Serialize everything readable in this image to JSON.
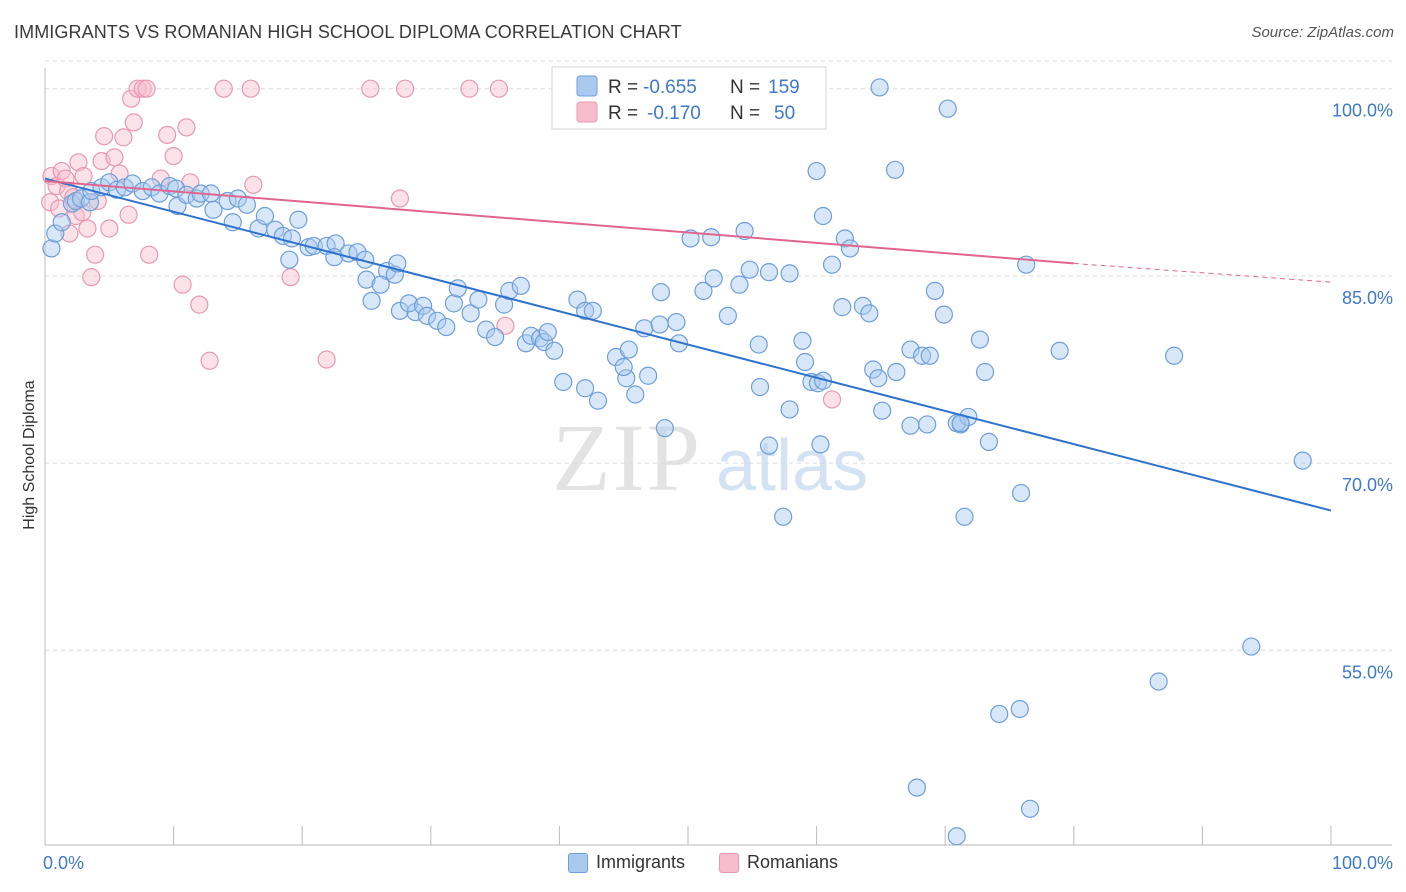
{
  "title": "IMMIGRANTS VS ROMANIAN HIGH SCHOOL DIPLOMA CORRELATION CHART",
  "source": "Source: ZipAtlas.com",
  "watermark": {
    "zip": "ZIP",
    "atlas": "atlas"
  },
  "colors": {
    "immigrants_fill": "#a9c9ef",
    "immigrants_stroke": "#6f9fd8",
    "immigrants_line": "#2f72cc",
    "romanians_fill": "#f6bccd",
    "romanians_stroke": "#e899b2",
    "romanians_line": "#e06690",
    "tick_label": "#3f79c9",
    "grid": "#dcdcdc"
  },
  "legend_top": {
    "immigrants": {
      "r_label": "R =",
      "r_value": "-0.655",
      "n_label": "N =",
      "n_value": "159"
    },
    "romanians": {
      "r_label": "R =",
      "r_value": "-0.170",
      "n_label": "N =",
      "n_value": "50"
    }
  },
  "chart_data": {
    "type": "scatter",
    "title": "IMMIGRANTS VS ROMANIAN HIGH SCHOOL DIPLOMA CORRELATION CHART",
    "xlabel": "",
    "ylabel": "High School Diploma",
    "xlim": [
      0,
      100
    ],
    "ylim": [
      39.4,
      102.3
    ],
    "x_tick_labels": [
      "0.0%",
      "100.0%"
    ],
    "y_ticks": [
      55,
      70,
      85,
      100
    ],
    "y_tick_labels": [
      "55.0%",
      "70.0%",
      "85.0%",
      "100.0%"
    ],
    "grid": true,
    "legend": [
      "Immigrants",
      "Romanians"
    ],
    "series": [
      {
        "name": "Immigrants",
        "r": -0.655,
        "n": 159,
        "trend": {
          "x": [
            0,
            100
          ],
          "y": [
            92.8,
            66.2
          ]
        },
        "points": [
          [
            0.5,
            87.2
          ],
          [
            0.8,
            88.4
          ],
          [
            1.3,
            89.3
          ],
          [
            2.1,
            90.8
          ],
          [
            2.4,
            91.0
          ],
          [
            2.8,
            91.2
          ],
          [
            3.5,
            90.9
          ],
          [
            3.6,
            91.8
          ],
          [
            4.4,
            92.1
          ],
          [
            5.0,
            92.5
          ],
          [
            5.6,
            91.9
          ],
          [
            6.2,
            92.1
          ],
          [
            6.8,
            92.4
          ],
          [
            7.6,
            91.8
          ],
          [
            8.3,
            92.1
          ],
          [
            8.9,
            91.6
          ],
          [
            9.7,
            92.2
          ],
          [
            10.2,
            92.0
          ],
          [
            10.3,
            90.6
          ],
          [
            11.0,
            91.5
          ],
          [
            11.8,
            91.2
          ],
          [
            12.1,
            91.6
          ],
          [
            12.9,
            91.6
          ],
          [
            13.1,
            90.3
          ],
          [
            14.2,
            91.0
          ],
          [
            15.0,
            91.2
          ],
          [
            15.7,
            90.7
          ],
          [
            14.6,
            89.3
          ],
          [
            16.6,
            88.8
          ],
          [
            17.1,
            89.8
          ],
          [
            17.9,
            88.7
          ],
          [
            18.5,
            88.2
          ],
          [
            19.7,
            89.5
          ],
          [
            19.2,
            88.0
          ],
          [
            20.5,
            87.3
          ],
          [
            20.9,
            87.4
          ],
          [
            21.9,
            87.4
          ],
          [
            22.6,
            87.6
          ],
          [
            22.5,
            86.5
          ],
          [
            23.6,
            86.8
          ],
          [
            24.3,
            86.9
          ],
          [
            24.9,
            86.3
          ],
          [
            19.0,
            86.3
          ],
          [
            26.6,
            85.4
          ],
          [
            27.2,
            85.1
          ],
          [
            27.4,
            86.0
          ],
          [
            25.0,
            84.7
          ],
          [
            26.1,
            84.3
          ],
          [
            25.4,
            83.0
          ],
          [
            27.6,
            82.2
          ],
          [
            28.8,
            82.1
          ],
          [
            28.3,
            82.8
          ],
          [
            29.4,
            82.6
          ],
          [
            29.7,
            81.8
          ],
          [
            30.5,
            81.4
          ],
          [
            31.2,
            80.9
          ],
          [
            31.8,
            82.8
          ],
          [
            32.1,
            84.0
          ],
          [
            33.1,
            82.0
          ],
          [
            33.7,
            83.1
          ],
          [
            34.3,
            80.7
          ],
          [
            35.0,
            80.1
          ],
          [
            35.7,
            82.7
          ],
          [
            36.1,
            83.8
          ],
          [
            37.0,
            84.2
          ],
          [
            37.4,
            79.6
          ],
          [
            37.8,
            80.2
          ],
          [
            38.5,
            80.0
          ],
          [
            38.8,
            79.7
          ],
          [
            39.1,
            80.5
          ],
          [
            39.6,
            79.0
          ],
          [
            41.4,
            83.1
          ],
          [
            40.3,
            76.5
          ],
          [
            42.0,
            82.2
          ],
          [
            42.6,
            82.2
          ],
          [
            42.0,
            76.0
          ],
          [
            44.4,
            78.5
          ],
          [
            43.0,
            75.0
          ],
          [
            45.2,
            76.8
          ],
          [
            45.4,
            79.1
          ],
          [
            45.0,
            77.7
          ],
          [
            45.9,
            75.5
          ],
          [
            46.6,
            80.8
          ],
          [
            46.9,
            77.0
          ],
          [
            47.8,
            81.1
          ],
          [
            47.9,
            83.7
          ],
          [
            49.1,
            81.3
          ],
          [
            49.3,
            79.6
          ],
          [
            48.2,
            72.8
          ],
          [
            50.2,
            88.0
          ],
          [
            51.2,
            83.8
          ],
          [
            51.8,
            88.1
          ],
          [
            52.0,
            84.8
          ],
          [
            53.1,
            81.8
          ],
          [
            54.0,
            84.3
          ],
          [
            54.4,
            88.6
          ],
          [
            54.8,
            85.5
          ],
          [
            56.3,
            85.3
          ],
          [
            57.9,
            85.2
          ],
          [
            55.5,
            79.5
          ],
          [
            55.6,
            76.1
          ],
          [
            56.3,
            71.4
          ],
          [
            57.4,
            65.7
          ],
          [
            57.9,
            74.3
          ],
          [
            58.9,
            79.8
          ],
          [
            59.1,
            78.1
          ],
          [
            59.6,
            76.5
          ],
          [
            60.1,
            76.4
          ],
          [
            60.5,
            76.6
          ],
          [
            60.3,
            71.5
          ],
          [
            60.0,
            93.4
          ],
          [
            60.5,
            89.8
          ],
          [
            61.2,
            85.9
          ],
          [
            62.0,
            82.5
          ],
          [
            62.2,
            88.0
          ],
          [
            62.6,
            87.2
          ],
          [
            63.6,
            82.6
          ],
          [
            64.1,
            82.0
          ],
          [
            64.4,
            77.5
          ],
          [
            64.8,
            76.8
          ],
          [
            65.1,
            74.2
          ],
          [
            66.2,
            77.3
          ],
          [
            67.3,
            79.1
          ],
          [
            67.3,
            73.0
          ],
          [
            68.2,
            78.6
          ],
          [
            68.8,
            78.6
          ],
          [
            69.2,
            83.8
          ],
          [
            69.9,
            81.9
          ],
          [
            71.2,
            73.1
          ],
          [
            70.9,
            73.2
          ],
          [
            71.8,
            73.7
          ],
          [
            72.7,
            79.9
          ],
          [
            73.1,
            77.3
          ],
          [
            73.4,
            71.7
          ],
          [
            71.5,
            65.7
          ],
          [
            71.2,
            73.2
          ],
          [
            68.6,
            73.1
          ],
          [
            75.9,
            67.6
          ],
          [
            76.3,
            85.9
          ],
          [
            78.9,
            79.0
          ],
          [
            64.9,
            100.1
          ],
          [
            66.1,
            93.5
          ],
          [
            70.2,
            98.4
          ],
          [
            87.8,
            78.6
          ],
          [
            86.6,
            52.5
          ],
          [
            93.8,
            55.3
          ],
          [
            97.8,
            70.2
          ],
          [
            75.8,
            50.3
          ],
          [
            74.2,
            49.9
          ],
          [
            67.8,
            44.0
          ],
          [
            70.9,
            40.1
          ],
          [
            76.6,
            42.3
          ]
        ]
      },
      {
        "name": "Romanians",
        "r": -0.17,
        "n": 50,
        "trend": {
          "x": [
            0,
            80
          ],
          "y": [
            92.6,
            86.0
          ]
        },
        "trend_dashed": {
          "x": [
            80,
            100
          ],
          "y": [
            86.0,
            84.5
          ]
        },
        "points": [
          [
            0.4,
            90.9
          ],
          [
            0.5,
            93.0
          ],
          [
            0.9,
            92.2
          ],
          [
            1.1,
            90.4
          ],
          [
            1.3,
            93.4
          ],
          [
            1.6,
            92.8
          ],
          [
            1.8,
            91.8
          ],
          [
            1.9,
            88.4
          ],
          [
            2.2,
            91.3
          ],
          [
            2.4,
            89.8
          ],
          [
            2.6,
            94.1
          ],
          [
            2.9,
            90.1
          ],
          [
            3.0,
            93.0
          ],
          [
            3.3,
            88.8
          ],
          [
            3.6,
            84.9
          ],
          [
            3.9,
            86.7
          ],
          [
            4.1,
            91.0
          ],
          [
            4.4,
            94.2
          ],
          [
            4.6,
            96.2
          ],
          [
            5.0,
            88.8
          ],
          [
            5.4,
            94.5
          ],
          [
            5.8,
            93.2
          ],
          [
            6.1,
            96.1
          ],
          [
            6.5,
            89.9
          ],
          [
            6.7,
            99.2
          ],
          [
            6.9,
            97.3
          ],
          [
            7.2,
            100.0
          ],
          [
            7.6,
            100.0
          ],
          [
            7.9,
            100.0
          ],
          [
            8.1,
            86.7
          ],
          [
            9.0,
            92.8
          ],
          [
            9.5,
            96.3
          ],
          [
            10.0,
            94.6
          ],
          [
            10.7,
            84.3
          ],
          [
            11.0,
            96.9
          ],
          [
            11.3,
            92.5
          ],
          [
            12.0,
            82.7
          ],
          [
            12.8,
            78.2
          ],
          [
            13.9,
            100.0
          ],
          [
            16.0,
            100.0
          ],
          [
            16.2,
            92.3
          ],
          [
            19.1,
            84.9
          ],
          [
            21.9,
            78.3
          ],
          [
            25.3,
            100.0
          ],
          [
            27.6,
            91.2
          ],
          [
            28.0,
            100.0
          ],
          [
            33.0,
            100.0
          ],
          [
            35.3,
            100.0
          ],
          [
            35.8,
            81.0
          ],
          [
            61.2,
            75.1
          ]
        ]
      }
    ]
  }
}
